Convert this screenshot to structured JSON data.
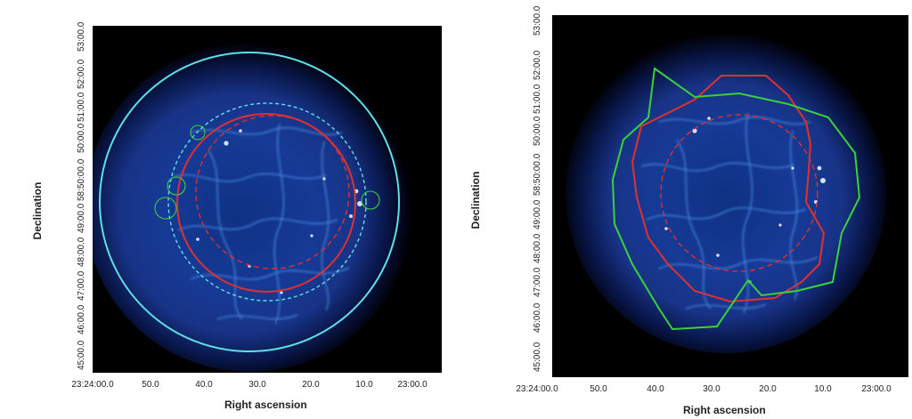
{
  "left_panel": {
    "ylabel": "Declination",
    "xlabel": "Right ascension",
    "dec_ticks": [
      "53:00.0",
      "52:00.0",
      "51:00.0",
      "50:00.0",
      "58:50:00.0",
      "49:00.0",
      "48:00.0",
      "47:00.0",
      "46:00.0",
      "45:00.0"
    ],
    "ra_ticks": [
      "23:24:00.0",
      "50.0",
      "40.0",
      "30.0",
      "20.0",
      "10.0",
      "23:00.0"
    ]
  },
  "right_panel": {
    "ylabel": "Declination",
    "xlabel": "Right ascension",
    "dec_ticks": [
      "53:00.0",
      "52:00.0",
      "51:00.0",
      "50:00.0",
      "58:50:00.0",
      "49:00.0",
      "48:00.0",
      "47:00.0",
      "46:00.0",
      "45:00.0"
    ],
    "ra_ticks": [
      "23:24:00.0",
      "50.0",
      "40.0",
      "30.0",
      "20.0",
      "10.0",
      "23:00.0"
    ]
  },
  "colors": {
    "background": "#000000",
    "nebula_core": "#1e3fa0",
    "nebula_bright": "#6fb6ff",
    "region_cyan": "#5fe0e6",
    "region_red": "#e03030",
    "region_green": "#3ad23a"
  }
}
